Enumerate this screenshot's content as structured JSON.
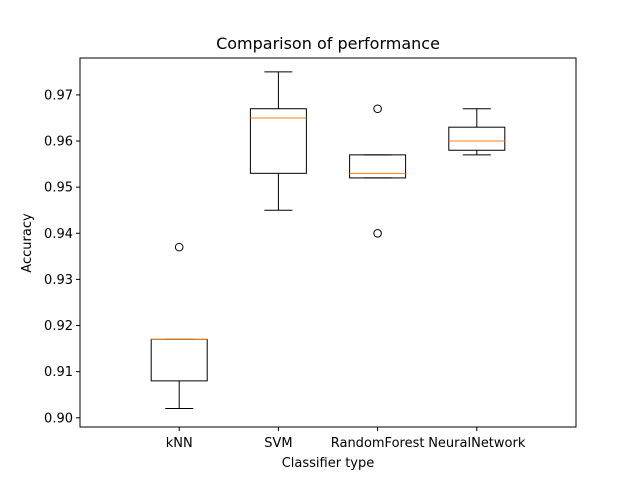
{
  "chart_data": {
    "type": "box",
    "title": "Comparison of performance",
    "xlabel": "Classifier type",
    "ylabel": "Accuracy",
    "ylim": [
      0.898,
      0.978
    ],
    "yticks": [
      "0.90",
      "0.91",
      "0.92",
      "0.93",
      "0.94",
      "0.95",
      "0.96",
      "0.97"
    ],
    "grid": false,
    "categories": [
      "kNN",
      "SVM",
      "RandomForest",
      "NeuralNetwork"
    ],
    "boxes": [
      {
        "category": "kNN",
        "whisker_low": 0.902,
        "q1": 0.908,
        "median": 0.917,
        "q3": 0.917,
        "whisker_high": 0.917,
        "outliers": [
          0.937
        ]
      },
      {
        "category": "SVM",
        "whisker_low": 0.945,
        "q1": 0.953,
        "median": 0.965,
        "q3": 0.967,
        "whisker_high": 0.975,
        "outliers": []
      },
      {
        "category": "RandomForest",
        "whisker_low": 0.952,
        "q1": 0.952,
        "median": 0.953,
        "q3": 0.957,
        "whisker_high": 0.957,
        "outliers": [
          0.967,
          0.94
        ]
      },
      {
        "category": "NeuralNetwork",
        "whisker_low": 0.957,
        "q1": 0.958,
        "median": 0.96,
        "q3": 0.963,
        "whisker_high": 0.967,
        "outliers": []
      }
    ],
    "colors": {
      "box": "#000000",
      "median": "#ff7f0e",
      "background": "#ffffff"
    }
  }
}
